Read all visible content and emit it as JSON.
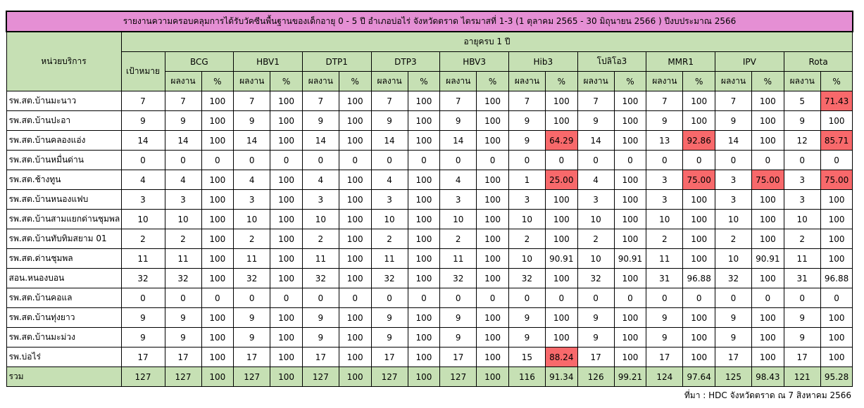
{
  "title": "รายงานความครอบคลุมการได้รับวัคซีนพื้นฐานของเด็กอายุ 0 - 5 ปี อำเภอบ่อไร่ จังหวัดตราด ไตรมาสที่ 1-3 (1 ตุลาคม 2565 - 30 มิถุนายน 2566 ) ปีงบประมาณ 2566",
  "table": {
    "unit_header": "หน่วยบริการ",
    "group_header": "อายุครบ 1 ปี",
    "target_header": "เป้าหมาย",
    "vaccines": [
      "BCG",
      "HBV1",
      "DTP1",
      "DTP3",
      "HBV3",
      "Hib3",
      "โปลิโอ3",
      "MMR1",
      "IPV",
      "Rota"
    ],
    "sub_headers": [
      "ผลงาน",
      "%"
    ],
    "rows": [
      [
        "รพ.สต.บ้านมะนาว",
        "7",
        "7",
        "100",
        "7",
        "100",
        "7",
        "100",
        "7",
        "100",
        "7",
        "100",
        "7",
        "100",
        "7",
        "100",
        "7",
        "100",
        "7",
        "100",
        "5",
        "71.43"
      ],
      [
        "รพ.สต.บ้านปะอา",
        "9",
        "9",
        "100",
        "9",
        "100",
        "9",
        "100",
        "9",
        "100",
        "9",
        "100",
        "9",
        "100",
        "9",
        "100",
        "9",
        "100",
        "9",
        "100",
        "9",
        "100"
      ],
      [
        "รพ.สต.บ้านคลองแอ่ง",
        "14",
        "14",
        "100",
        "14",
        "100",
        "14",
        "100",
        "14",
        "100",
        "14",
        "100",
        "9",
        "64.29",
        "14",
        "100",
        "13",
        "92.86",
        "14",
        "100",
        "12",
        "85.71"
      ],
      [
        "รพ.สต.บ้านหมื่นด่าน",
        "0",
        "0",
        "0",
        "0",
        "0",
        "0",
        "0",
        "0",
        "0",
        "0",
        "0",
        "0",
        "0",
        "0",
        "0",
        "0",
        "0",
        "0",
        "0",
        "0",
        "0"
      ],
      [
        "รพ.สต.ช้างทูน",
        "4",
        "4",
        "100",
        "4",
        "100",
        "4",
        "100",
        "4",
        "100",
        "4",
        "100",
        "1",
        "25.00",
        "4",
        "100",
        "3",
        "75.00",
        "3",
        "75.00",
        "3",
        "75.00"
      ],
      [
        "รพ.สต.บ้านหนองแฟบ",
        "3",
        "3",
        "100",
        "3",
        "100",
        "3",
        "100",
        "3",
        "100",
        "3",
        "100",
        "3",
        "100",
        "3",
        "100",
        "3",
        "100",
        "3",
        "100",
        "3",
        "100"
      ],
      [
        "รพ.สต.บ้านสามแยกด่านชุมพล",
        "10",
        "10",
        "100",
        "10",
        "100",
        "10",
        "100",
        "10",
        "100",
        "10",
        "100",
        "10",
        "100",
        "10",
        "100",
        "10",
        "100",
        "10",
        "100",
        "10",
        "100"
      ],
      [
        "รพ.สต.บ้านทับทิมสยาม 01",
        "2",
        "2",
        "100",
        "2",
        "100",
        "2",
        "100",
        "2",
        "100",
        "2",
        "100",
        "2",
        "100",
        "2",
        "100",
        "2",
        "100",
        "2",
        "100",
        "2",
        "100"
      ],
      [
        "รพ.สต.ด่านชุมพล",
        "11",
        "11",
        "100",
        "11",
        "100",
        "11",
        "100",
        "11",
        "100",
        "11",
        "100",
        "10",
        "90.91",
        "10",
        "90.91",
        "11",
        "100",
        "10",
        "90.91",
        "11",
        "100"
      ],
      [
        "สอน.หนองบอน",
        "32",
        "32",
        "100",
        "32",
        "100",
        "32",
        "100",
        "32",
        "100",
        "32",
        "100",
        "32",
        "100",
        "32",
        "100",
        "31",
        "96.88",
        "32",
        "100",
        "31",
        "96.88"
      ],
      [
        "รพ.สต.บ้านคอแล",
        "0",
        "0",
        "0",
        "0",
        "0",
        "0",
        "0",
        "0",
        "0",
        "0",
        "0",
        "0",
        "0",
        "0",
        "0",
        "0",
        "0",
        "0",
        "0",
        "0",
        "0"
      ],
      [
        "รพ.สต.บ้านทุ่งยาว",
        "9",
        "9",
        "100",
        "9",
        "100",
        "9",
        "100",
        "9",
        "100",
        "9",
        "100",
        "9",
        "100",
        "9",
        "100",
        "9",
        "100",
        "9",
        "100",
        "9",
        "100"
      ],
      [
        "รพ.สต.บ้านมะม่วง",
        "9",
        "9",
        "100",
        "9",
        "100",
        "9",
        "100",
        "9",
        "100",
        "9",
        "100",
        "9",
        "100",
        "9",
        "100",
        "9",
        "100",
        "9",
        "100",
        "9",
        "100"
      ],
      [
        "รพ.บ่อไร่",
        "17",
        "17",
        "100",
        "17",
        "100",
        "17",
        "100",
        "17",
        "100",
        "17",
        "100",
        "15",
        "88.24",
        "17",
        "100",
        "17",
        "100",
        "17",
        "100",
        "17",
        "100"
      ]
    ],
    "total": [
      "รวม",
      "127",
      "127",
      "100",
      "127",
      "100",
      "127",
      "100",
      "127",
      "100",
      "127",
      "100",
      "116",
      "91.34",
      "126",
      "99.21",
      "124",
      "97.64",
      "125",
      "98.43",
      "121",
      "95.28"
    ],
    "highlight": {
      "color": "#f8696b",
      "cells": [
        [
          0,
          21
        ],
        [
          2,
          13
        ],
        [
          2,
          17
        ],
        [
          2,
          21
        ],
        [
          4,
          13
        ],
        [
          4,
          17
        ],
        [
          4,
          19
        ],
        [
          4,
          21
        ],
        [
          13,
          13
        ]
      ]
    }
  },
  "source": "ที่มา : HDC จังหวัดตราด ณ 7 สิงหาคม 2566"
}
